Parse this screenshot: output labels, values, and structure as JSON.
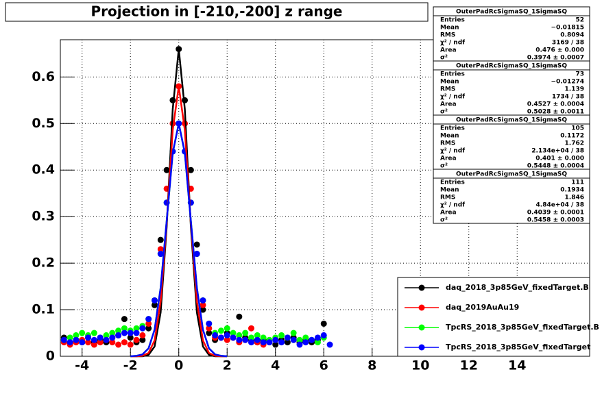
{
  "chart_data": {
    "type": "scatter",
    "title": "Projection in [-210,-200] z range",
    "xlim": [
      -4.9,
      17
    ],
    "ylim": [
      0,
      0.68
    ],
    "xticks": [
      -4,
      -2,
      0,
      2,
      4,
      6,
      8,
      10,
      12,
      14
    ],
    "yticks": [
      0,
      0.1,
      0.2,
      0.3,
      0.4,
      0.5,
      0.6
    ],
    "grid": true,
    "legend": "bottom-right",
    "x": [
      -4.75,
      -4.5,
      -4.25,
      -4,
      -3.75,
      -3.5,
      -3.25,
      -3,
      -2.75,
      -2.5,
      -2.25,
      -2,
      -1.75,
      -1.5,
      -1.25,
      -1,
      -0.75,
      -0.5,
      -0.25,
      0,
      0.25,
      0.5,
      0.75,
      1,
      1.25,
      1.5,
      1.75,
      2,
      2.25,
      2.5,
      2.75,
      3,
      3.25,
      3.5,
      3.75,
      4,
      4.25,
      4.5,
      4.75,
      5,
      5.25,
      5.5,
      5.75,
      6,
      6.25
    ],
    "series": [
      {
        "name": "daq_2018_3p85GeV_fixedTarget.B",
        "color": "#000000",
        "values": [
          0.04,
          0.03,
          0.035,
          0.03,
          0.04,
          0.03,
          0.035,
          0.03,
          0.04,
          0.045,
          0.08,
          0.04,
          0.03,
          0.035,
          0.06,
          0.11,
          0.25,
          0.4,
          0.55,
          0.66,
          0.55,
          0.4,
          0.24,
          0.1,
          0.05,
          0.035,
          0.04,
          0.05,
          0.04,
          0.085,
          0.04,
          0.035,
          0.03,
          0.035,
          0.03,
          0.025,
          0.035,
          0.03,
          0.04,
          0.03,
          0.035,
          0.03,
          0.035,
          0.07,
          null
        ]
      },
      {
        "name": "daq_2019AuAu19",
        "color": "#ff0000",
        "values": [
          0.03,
          0.025,
          0.03,
          0.035,
          0.03,
          0.025,
          0.03,
          0.035,
          0.03,
          0.025,
          0.03,
          0.025,
          0.035,
          0.045,
          0.07,
          0.12,
          0.23,
          0.36,
          0.5,
          0.58,
          0.5,
          0.36,
          0.22,
          0.11,
          0.06,
          0.04,
          0.04,
          0.035,
          0.04,
          0.03,
          0.035,
          0.06,
          0.03,
          0.025,
          null,
          null,
          null,
          null,
          null,
          null,
          null,
          null,
          null,
          null,
          null
        ]
      },
      {
        "name": "TpcRS_2018_3p85GeV_fixedTarget.B",
        "color": "#00ff00",
        "values": [
          0.035,
          0.04,
          0.045,
          0.05,
          0.045,
          0.05,
          0.04,
          0.045,
          0.05,
          0.055,
          0.06,
          0.055,
          0.06,
          0.065,
          0.08,
          0.12,
          0.22,
          0.33,
          0.44,
          0.5,
          0.44,
          0.33,
          0.22,
          0.12,
          0.07,
          0.05,
          0.055,
          0.06,
          0.05,
          0.045,
          0.05,
          0.04,
          0.045,
          0.04,
          0.035,
          0.04,
          0.045,
          0.04,
          0.05,
          0.035,
          0.04,
          0.035,
          0.03,
          0.04,
          null
        ]
      },
      {
        "name": "TpcRS_2018_3p85GeV_fixedTarget",
        "color": "#0000ff",
        "values": [
          0.035,
          0.03,
          0.035,
          0.03,
          0.04,
          0.035,
          0.04,
          0.035,
          0.04,
          0.045,
          0.05,
          0.05,
          0.05,
          0.06,
          0.08,
          0.12,
          0.22,
          0.33,
          0.44,
          0.5,
          0.44,
          0.33,
          0.22,
          0.12,
          0.07,
          0.045,
          0.04,
          0.045,
          0.04,
          0.035,
          0.035,
          0.03,
          0.035,
          0.03,
          0.03,
          0.035,
          0.03,
          0.04,
          0.035,
          0.025,
          0.03,
          0.035,
          0.04,
          0.045,
          0.025
        ]
      }
    ],
    "fit_x": [
      -2,
      -1.75,
      -1.5,
      -1.25,
      -1,
      -0.75,
      -0.5,
      -0.25,
      0,
      0.25,
      0.5,
      0.75,
      1,
      1.25,
      1.5,
      1.75,
      2
    ],
    "fits": [
      {
        "color": "#000000",
        "values": [
          0,
          0,
          0,
          0.003,
          0.021,
          0.094,
          0.278,
          0.531,
          0.66,
          0.531,
          0.278,
          0.094,
          0.021,
          0.003,
          0,
          0,
          0
        ]
      },
      {
        "color": "#ff0000",
        "values": [
          0,
          0,
          0.001,
          0.007,
          0.034,
          0.118,
          0.286,
          0.486,
          0.58,
          0.486,
          0.286,
          0.118,
          0.034,
          0.007,
          0.001,
          0,
          0
        ]
      },
      {
        "color": "#00ff00",
        "values": [
          0,
          0.001,
          0.004,
          0.017,
          0.057,
          0.147,
          0.291,
          0.437,
          0.5,
          0.437,
          0.291,
          0.147,
          0.057,
          0.017,
          0.004,
          0.001,
          0
        ]
      },
      {
        "color": "#0000ff",
        "values": [
          0,
          0.001,
          0.004,
          0.017,
          0.057,
          0.147,
          0.291,
          0.437,
          0.5,
          0.437,
          0.291,
          0.147,
          0.057,
          0.017,
          0.004,
          0.001,
          0
        ]
      }
    ],
    "stats": [
      {
        "title": "OuterPadRcSigmaSQ_1SigmaSQ",
        "rows": [
          [
            "Entries",
            "52"
          ],
          [
            "Mean",
            "−0.01815"
          ],
          [
            "RMS",
            "0.8094"
          ],
          [
            "χ² / ndf",
            "3169 / 38"
          ],
          [
            "Area",
            "0.476 ± 0.000"
          ],
          [
            "σ²",
            "0.3974 ± 0.0007"
          ]
        ]
      },
      {
        "title": "OuterPadRcSigmaSQ_1SigmaSQ",
        "rows": [
          [
            "Entries",
            "73"
          ],
          [
            "Mean",
            "−0.01274"
          ],
          [
            "RMS",
            "1.139"
          ],
          [
            "χ² / ndf",
            "1734 / 38"
          ],
          [
            "Area",
            "0.4527 ± 0.0004"
          ],
          [
            "σ²",
            "0.5028 ± 0.0011"
          ]
        ]
      },
      {
        "title": "OuterPadRcSigmaSQ_1SigmaSQ",
        "rows": [
          [
            "Entries",
            "105"
          ],
          [
            "Mean",
            "0.1172"
          ],
          [
            "RMS",
            "1.762"
          ],
          [
            "χ² / ndf",
            "2.134e+04 / 38"
          ],
          [
            "Area",
            "0.401 ± 0.000"
          ],
          [
            "σ²",
            "0.5448 ± 0.0004"
          ]
        ]
      },
      {
        "title": "OuterPadRcSigmaSQ_1SigmaSQ",
        "rows": [
          [
            "Entries",
            "111"
          ],
          [
            "Mean",
            "0.1934"
          ],
          [
            "RMS",
            "1.846"
          ],
          [
            "χ² / ndf",
            "4.84e+04 / 38"
          ],
          [
            "Area",
            "0.4039 ± 0.0001"
          ],
          [
            "σ²",
            "0.5458 ± 0.0003"
          ]
        ]
      }
    ]
  }
}
